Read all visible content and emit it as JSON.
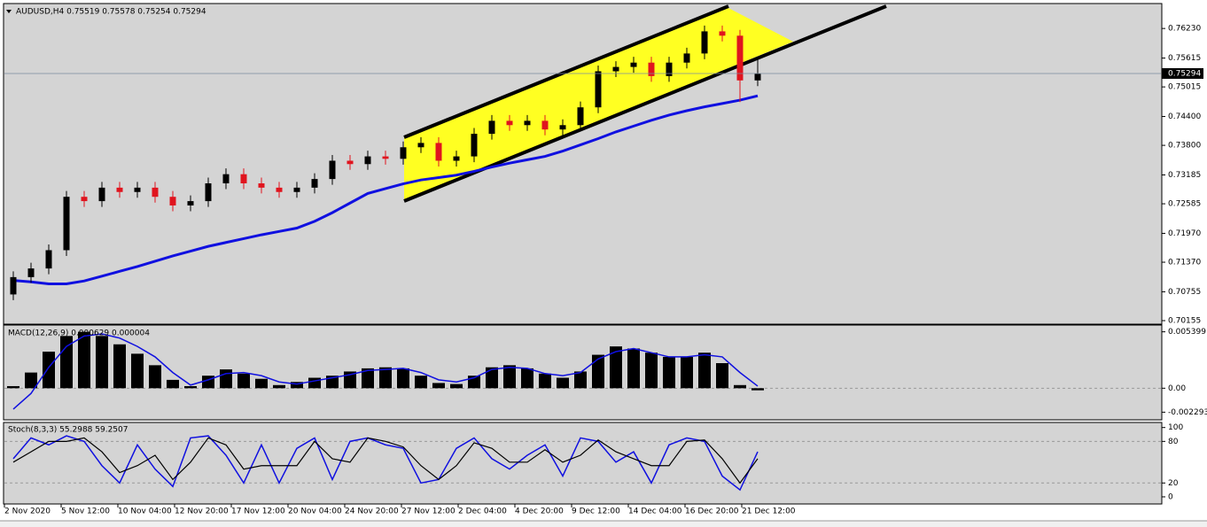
{
  "chart_data": [
    {
      "type": "candlestick",
      "title": "AUDUSD,H4 0.75519 0.75578 0.75254 0.75294",
      "open": [
        0.707,
        0.7106,
        0.7124,
        0.7162,
        0.7273,
        0.7264,
        0.7292,
        0.7283,
        0.7292,
        0.7273,
        0.7255,
        0.7264,
        0.7301,
        0.732,
        0.7301,
        0.7292,
        0.7283,
        0.7292,
        0.731,
        0.7348,
        0.7341,
        0.7357,
        0.7352,
        0.7376,
        0.7385,
        0.7348,
        0.7357,
        0.7404,
        0.7431,
        0.7422,
        0.7431,
        0.7413,
        0.7422,
        0.7459,
        0.7534,
        0.7543,
        0.7552,
        0.7524,
        0.7552,
        0.7571,
        0.7617,
        0.7608,
        0.7515
      ],
      "high": [
        0.7118,
        0.7136,
        0.7174,
        0.7285,
        0.7285,
        0.7304,
        0.7304,
        0.7304,
        0.7304,
        0.7285,
        0.7276,
        0.7313,
        0.7332,
        0.7332,
        0.7313,
        0.7304,
        0.7304,
        0.7322,
        0.736,
        0.736,
        0.7369,
        0.7369,
        0.7388,
        0.7397,
        0.7397,
        0.7369,
        0.7416,
        0.7443,
        0.7443,
        0.7443,
        0.7443,
        0.7434,
        0.7471,
        0.7546,
        0.7555,
        0.7564,
        0.7564,
        0.7564,
        0.7583,
        0.7629,
        0.7629,
        0.762,
        0.7558
      ],
      "low": [
        0.7058,
        0.7094,
        0.7112,
        0.715,
        0.7252,
        0.7252,
        0.7271,
        0.7271,
        0.7261,
        0.7243,
        0.7243,
        0.7252,
        0.7289,
        0.7289,
        0.728,
        0.7271,
        0.7271,
        0.728,
        0.7298,
        0.7329,
        0.7329,
        0.734,
        0.734,
        0.7364,
        0.7336,
        0.7336,
        0.7345,
        0.7392,
        0.741,
        0.741,
        0.7401,
        0.7401,
        0.741,
        0.7447,
        0.7522,
        0.7531,
        0.7512,
        0.7512,
        0.754,
        0.7559,
        0.7596,
        0.747,
        0.7503
      ],
      "close": [
        0.7106,
        0.7124,
        0.7162,
        0.7273,
        0.7264,
        0.7292,
        0.7283,
        0.7292,
        0.7273,
        0.7255,
        0.7264,
        0.7301,
        0.732,
        0.7301,
        0.7292,
        0.7283,
        0.7292,
        0.731,
        0.7348,
        0.7341,
        0.7357,
        0.7352,
        0.7376,
        0.7385,
        0.7348,
        0.7357,
        0.7404,
        0.7431,
        0.7422,
        0.7431,
        0.7413,
        0.7422,
        0.7459,
        0.7534,
        0.7543,
        0.7552,
        0.7524,
        0.7552,
        0.7571,
        0.7617,
        0.7608,
        0.7515,
        0.7529
      ],
      "up_color": "#000000",
      "down_color": "#e0141e",
      "ma_values": [
        0.7099,
        0.7096,
        0.7092,
        0.7092,
        0.7098,
        0.7108,
        0.7118,
        0.7128,
        0.7139,
        0.715,
        0.716,
        0.717,
        0.7178,
        0.7186,
        0.7194,
        0.7201,
        0.7208,
        0.7222,
        0.724,
        0.726,
        0.728,
        0.729,
        0.73,
        0.7308,
        0.7313,
        0.7318,
        0.7326,
        0.7335,
        0.7343,
        0.735,
        0.7357,
        0.7368,
        0.7381,
        0.7394,
        0.7408,
        0.742,
        0.7432,
        0.7443,
        0.7452,
        0.746,
        0.7467,
        0.7474,
        0.7483
      ],
      "ma_color": "#1010e0",
      "current_price": 0.75294,
      "xlim": [
        -0.5,
        64.75
      ],
      "xticks": [
        {
          "value": -0.5,
          "label": "2 Nov 2020"
        },
        {
          "value": 2.7,
          "label": "5 Nov 12:00"
        },
        {
          "value": 5.9,
          "label": "10 Nov 04:00"
        },
        {
          "value": 9.1,
          "label": "12 Nov 20:00"
        },
        {
          "value": 12.3,
          "label": "17 Nov 12:00"
        },
        {
          "value": 15.5,
          "label": "20 Nov 04:00"
        },
        {
          "value": 18.7,
          "label": "24 Nov 20:00"
        },
        {
          "value": 21.9,
          "label": "27 Nov 12:00"
        },
        {
          "value": 25.1,
          "label": "2 Dec 04:00"
        },
        {
          "value": 28.3,
          "label": "4 Dec 20:00"
        },
        {
          "value": 31.5,
          "label": "9 Dec 12:00"
        },
        {
          "value": 34.7,
          "label": "14 Dec 04:00"
        },
        {
          "value": 37.9,
          "label": "16 Dec 20:00"
        },
        {
          "value": 41.1,
          "label": "21 Dec 12:00"
        }
      ],
      "ylim": [
        0.701,
        0.7673
      ],
      "yticks": [
        {
          "value": 0.7623,
          "label": "0.76230"
        },
        0.75615,
        0.75015,
        {
          "value": 0.744,
          "label": "0.74400"
        },
        {
          "value": 0.738,
          "label": "0.73800"
        },
        0.73185,
        0.72585,
        {
          "value": 0.7197,
          "label": "0.71970"
        },
        {
          "value": 0.7137,
          "label": "0.71370"
        },
        0.70755,
        0.70155
      ]
    },
    {
      "type": "macd",
      "title": "MACD(12,26,9) 0.000629 0.000004",
      "values": [
        0.0002,
        0.0015,
        0.0035,
        0.005,
        0.0054,
        0.005,
        0.0042,
        0.0033,
        0.0022,
        0.0008,
        0.0002,
        0.0012,
        0.0018,
        0.0014,
        0.0009,
        0.0003,
        0.0006,
        0.001,
        0.0012,
        0.0016,
        0.0019,
        0.002,
        0.0019,
        0.0012,
        0.0005,
        0.0004,
        0.0012,
        0.002,
        0.0022,
        0.0019,
        0.0014,
        0.001,
        0.0016,
        0.0032,
        0.004,
        0.0038,
        0.0034,
        0.003,
        0.003,
        0.0034,
        0.0024,
        0.0003,
        -0.0002
      ],
      "signal": [
        -0.002,
        -0.0005,
        0.002,
        0.004,
        0.005,
        0.0052,
        0.0048,
        0.004,
        0.003,
        0.0015,
        0.0003,
        0.0008,
        0.0014,
        0.0015,
        0.0012,
        0.0006,
        0.0004,
        0.0007,
        0.001,
        0.0013,
        0.0017,
        0.0018,
        0.0019,
        0.0015,
        0.0008,
        0.0006,
        0.001,
        0.0018,
        0.002,
        0.0019,
        0.0014,
        0.0012,
        0.0015,
        0.0028,
        0.0035,
        0.0038,
        0.0034,
        0.003,
        0.003,
        0.0032,
        0.003,
        0.0015,
        0.0002
      ],
      "color": "#000000",
      "signal_color": "#1010e0",
      "ylim": [
        -0.00294,
        0.00596
      ],
      "yticks": [
        0.005399,
        {
          "value": 0,
          "label": "0.00"
        },
        -0.002293
      ]
    },
    {
      "type": "stochastic",
      "title": "Stoch(8,3,3) 55.2988 59.2507",
      "main": [
        55,
        85,
        75,
        88,
        80,
        45,
        20,
        75,
        40,
        15,
        85,
        88,
        60,
        20,
        75,
        20,
        70,
        85,
        25,
        80,
        85,
        75,
        70,
        20,
        25,
        70,
        85,
        55,
        40,
        60,
        75,
        30,
        85,
        80,
        50,
        65,
        20,
        75,
        85,
        80,
        30,
        10,
        65
      ],
      "signal": [
        50,
        65,
        80,
        80,
        85,
        65,
        35,
        45,
        60,
        25,
        50,
        85,
        75,
        40,
        45,
        45,
        45,
        80,
        55,
        50,
        85,
        80,
        72,
        45,
        25,
        45,
        78,
        70,
        50,
        50,
        68,
        50,
        60,
        82,
        65,
        55,
        45,
        45,
        80,
        82,
        55,
        20,
        55
      ],
      "main_color": "#1010e0",
      "signal_color": "#000000",
      "ylim": [
        -9,
        106
      ],
      "yticks": [
        100,
        80,
        20,
        0
      ]
    }
  ]
}
